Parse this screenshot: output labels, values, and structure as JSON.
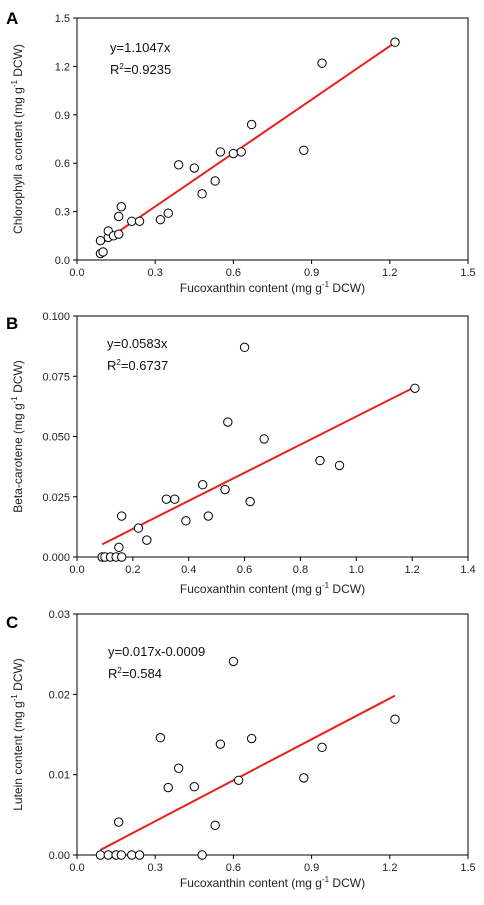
{
  "chart_data": [
    {
      "type": "scatter",
      "panel": "A",
      "xlabel": "Fucoxanthin content (mg g",
      "xlabel_sup": "-1",
      "xlabel_tail": " DCW)",
      "ylabel": "Chlorophyll a content (mg g",
      "ylabel_sup": "-1",
      "ylabel_tail": " DCW)",
      "xlim": [
        0,
        1.5
      ],
      "ylim": [
        0,
        1.5
      ],
      "xticks": [
        0.0,
        0.3,
        0.6,
        0.9,
        1.2,
        1.5
      ],
      "xtick_labels": [
        "0.0",
        "0.3",
        "0.6",
        "0.9",
        "1.2",
        "1.5"
      ],
      "yticks": [
        0.0,
        0.3,
        0.6,
        0.9,
        1.2,
        1.5
      ],
      "ytick_labels": [
        "0.0",
        "0.3",
        "0.6",
        "0.9",
        "1.2",
        "1.5"
      ],
      "equation": "y=1.1047x",
      "r2_prefix": "R",
      "r2_sup": "2",
      "r2_value": "=0.9235",
      "fit": {
        "slope": 1.1047,
        "intercept": 0,
        "x_range": [
          0.09,
          1.22
        ],
        "color": "#e8201b"
      },
      "points": [
        [
          0.09,
          0.04
        ],
        [
          0.1,
          0.05
        ],
        [
          0.09,
          0.12
        ],
        [
          0.12,
          0.14
        ],
        [
          0.12,
          0.18
        ],
        [
          0.14,
          0.15
        ],
        [
          0.16,
          0.16
        ],
        [
          0.16,
          0.27
        ],
        [
          0.17,
          0.33
        ],
        [
          0.21,
          0.24
        ],
        [
          0.24,
          0.24
        ],
        [
          0.32,
          0.25
        ],
        [
          0.35,
          0.29
        ],
        [
          0.39,
          0.59
        ],
        [
          0.45,
          0.57
        ],
        [
          0.48,
          0.41
        ],
        [
          0.53,
          0.49
        ],
        [
          0.55,
          0.67
        ],
        [
          0.6,
          0.66
        ],
        [
          0.63,
          0.67
        ],
        [
          0.67,
          0.84
        ],
        [
          0.87,
          0.68
        ],
        [
          0.94,
          1.22
        ],
        [
          1.22,
          1.35
        ]
      ]
    },
    {
      "type": "scatter",
      "panel": "B",
      "xlabel": "Fucoxanthin content (mg g",
      "xlabel_sup": "-1",
      "xlabel_tail": " DCW)",
      "ylabel": "Beta-carotene (mg g",
      "ylabel_sup": "-1",
      "ylabel_tail": " DCW)",
      "xlim": [
        0,
        1.4
      ],
      "ylim": [
        0,
        0.1
      ],
      "xticks": [
        0.0,
        0.2,
        0.4,
        0.6,
        0.8,
        1.0,
        1.2,
        1.4
      ],
      "xtick_labels": [
        "0.0",
        "0.2",
        "0.4",
        "0.6",
        "0.8",
        "1.0",
        "1.2",
        "1.4"
      ],
      "yticks": [
        0.0,
        0.025,
        0.05,
        0.075,
        0.1
      ],
      "ytick_labels": [
        "0.000",
        "0.025",
        "0.050",
        "0.075",
        "0.100"
      ],
      "equation": "y=0.0583x",
      "r2_prefix": "R",
      "r2_sup": "2",
      "r2_value": "=0.6737",
      "fit": {
        "slope": 0.0583,
        "intercept": 0,
        "x_range": [
          0.09,
          1.21
        ],
        "color": "#e8201b"
      },
      "points": [
        [
          0.09,
          0.0
        ],
        [
          0.1,
          0.0
        ],
        [
          0.12,
          0.0
        ],
        [
          0.14,
          0.0
        ],
        [
          0.16,
          0.0
        ],
        [
          0.15,
          0.004
        ],
        [
          0.16,
          0.017
        ],
        [
          0.22,
          0.012
        ],
        [
          0.25,
          0.007
        ],
        [
          0.32,
          0.024
        ],
        [
          0.35,
          0.024
        ],
        [
          0.39,
          0.015
        ],
        [
          0.45,
          0.03
        ],
        [
          0.47,
          0.017
        ],
        [
          0.53,
          0.028
        ],
        [
          0.54,
          0.056
        ],
        [
          0.6,
          0.087
        ],
        [
          0.62,
          0.023
        ],
        [
          0.67,
          0.049
        ],
        [
          0.87,
          0.04
        ],
        [
          0.94,
          0.038
        ],
        [
          1.21,
          0.07
        ]
      ]
    },
    {
      "type": "scatter",
      "panel": "C",
      "xlabel": "Fucoxanthin content (mg g",
      "xlabel_sup": "-1",
      "xlabel_tail": " DCW)",
      "ylabel": "Lutein content (mg g",
      "ylabel_sup": "-1",
      "ylabel_tail": " DCW)",
      "xlim": [
        0,
        1.5
      ],
      "ylim": [
        0,
        0.03
      ],
      "xticks": [
        0.0,
        0.3,
        0.6,
        0.9,
        1.2,
        1.5
      ],
      "xtick_labels": [
        "0.0",
        "0.3",
        "0.6",
        "0.9",
        "1.2",
        "1.5"
      ],
      "yticks": [
        0.0,
        0.01,
        0.02,
        0.03
      ],
      "ytick_labels": [
        "0.00",
        "0.01",
        "0.02",
        "0.03"
      ],
      "equation": "y=0.017x-0.0009",
      "r2_prefix": "R",
      "r2_sup": "2",
      "r2_value": "=0.584",
      "fit": {
        "slope": 0.017,
        "intercept": -0.0009,
        "x_range": [
          0.09,
          1.22
        ],
        "color": "#e8201b"
      },
      "points": [
        [
          0.09,
          0.0
        ],
        [
          0.12,
          0.0
        ],
        [
          0.15,
          0.0
        ],
        [
          0.17,
          0.0
        ],
        [
          0.21,
          0.0
        ],
        [
          0.24,
          0.0
        ],
        [
          0.48,
          0.0
        ],
        [
          0.16,
          0.0041
        ],
        [
          0.32,
          0.0146
        ],
        [
          0.35,
          0.0084
        ],
        [
          0.39,
          0.0108
        ],
        [
          0.45,
          0.0085
        ],
        [
          0.53,
          0.0037
        ],
        [
          0.55,
          0.0138
        ],
        [
          0.6,
          0.0241
        ],
        [
          0.62,
          0.0093
        ],
        [
          0.67,
          0.0145
        ],
        [
          0.87,
          0.0096
        ],
        [
          0.94,
          0.0134
        ],
        [
          1.22,
          0.0169
        ]
      ]
    }
  ]
}
